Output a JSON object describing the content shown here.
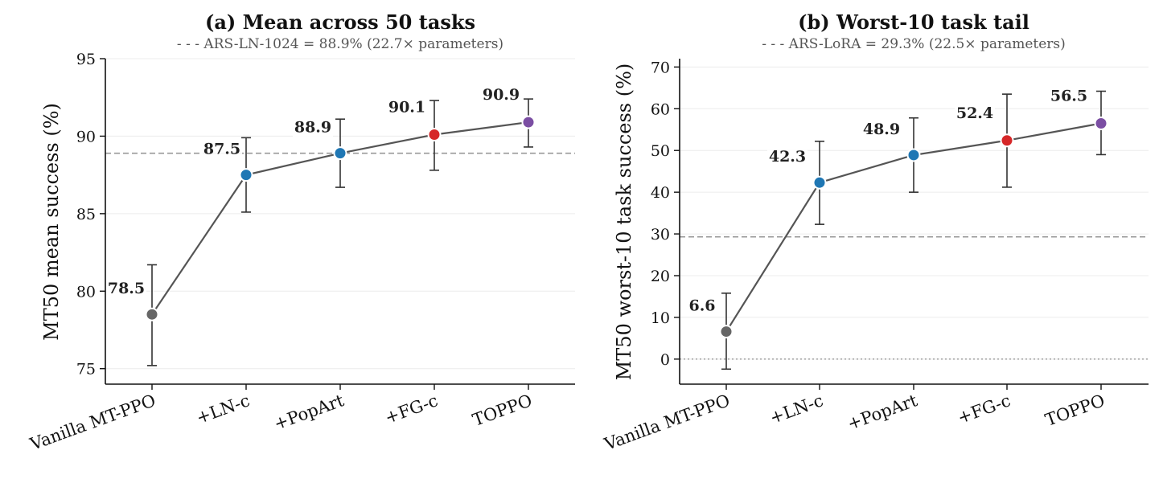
{
  "chart_data": [
    {
      "type": "line",
      "title": "(a) Mean across 50 tasks",
      "subtitle": "- - -  ARS-LN-1024 = 88.9%  (22.7× parameters)",
      "xlabel": "",
      "ylabel": "MT50 mean success (%)",
      "ylim": [
        74,
        95
      ],
      "yticks": [
        75,
        80,
        85,
        90,
        95
      ],
      "grid": true,
      "categories": [
        "Vanilla MT-PPO",
        "+LN-c",
        "+PopArt",
        "+FG-c",
        "TOPPO"
      ],
      "values": [
        78.5,
        87.5,
        88.9,
        90.1,
        90.9
      ],
      "data_labels": [
        "78.5",
        "87.5",
        "88.9",
        "90.1",
        "90.9"
      ],
      "err_low": [
        75.2,
        85.1,
        86.7,
        87.8,
        89.3
      ],
      "err_high": [
        81.7,
        89.9,
        91.1,
        92.3,
        92.4
      ],
      "point_colors": [
        "#666666",
        "#1f77b4",
        "#1f77b4",
        "#d62728",
        "#7b4ea3"
      ],
      "reference_line": 88.9,
      "zero_line": null
    },
    {
      "type": "line",
      "title": "(b) Worst-10 task tail",
      "subtitle": "- - -  ARS-LoRA = 29.3%  (22.5× parameters)",
      "xlabel": "",
      "ylabel": "MT50 worst-10 task success (%)",
      "ylim": [
        -6,
        72
      ],
      "yticks": [
        0,
        10,
        20,
        30,
        40,
        50,
        60,
        70
      ],
      "grid": true,
      "categories": [
        "Vanilla MT-PPO",
        "+LN-c",
        "+PopArt",
        "+FG-c",
        "TOPPO"
      ],
      "values": [
        6.6,
        42.3,
        48.9,
        52.4,
        56.5
      ],
      "data_labels": [
        "6.6",
        "42.3",
        "48.9",
        "52.4",
        "56.5"
      ],
      "err_low": [
        -2.4,
        32.3,
        40.0,
        41.2,
        49.0
      ],
      "err_high": [
        15.8,
        52.2,
        57.8,
        63.5,
        64.2
      ],
      "point_colors": [
        "#666666",
        "#1f77b4",
        "#1f77b4",
        "#d62728",
        "#7b4ea3"
      ],
      "reference_line": 29.3,
      "zero_line": 0
    }
  ]
}
